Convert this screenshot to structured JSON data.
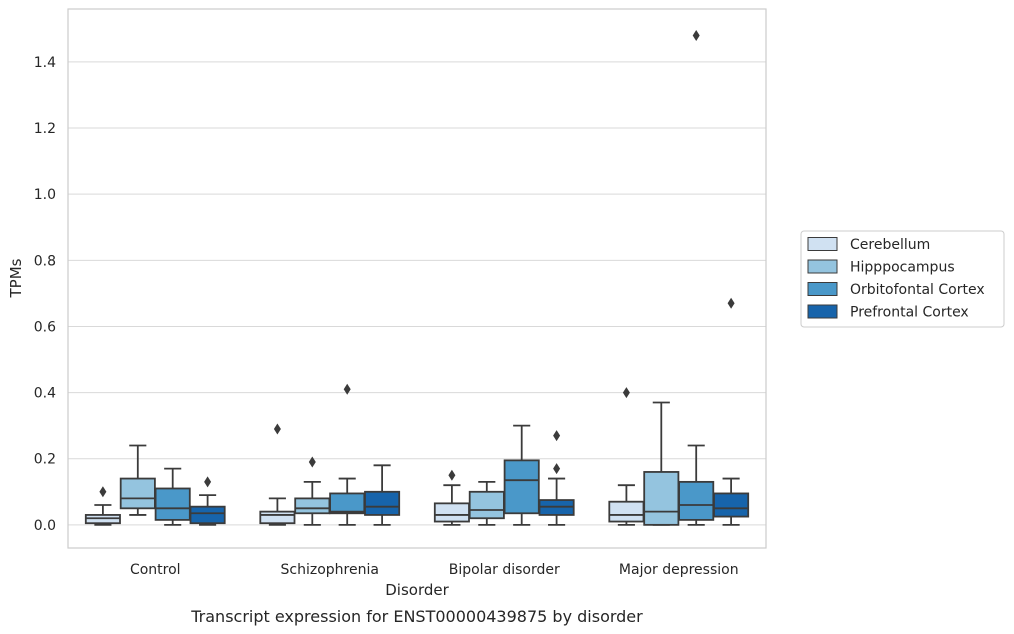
{
  "chart_data": {
    "type": "box",
    "caption": "Transcript expression for ENST00000439875 by disorder",
    "xlabel": "Disorder",
    "ylabel": "TPMs",
    "ylim": [
      -0.07,
      1.56
    ],
    "yticks": [
      "0.0",
      "0.2",
      "0.4",
      "0.6",
      "0.8",
      "1.0",
      "1.2",
      "1.4"
    ],
    "grid": "y",
    "legend_position": "right",
    "categories": [
      "Control",
      "Schizophrenia",
      "Bipolar disorder",
      "Major depression"
    ],
    "series": [
      {
        "name": "Cerebellum",
        "color": "#d0e1f2",
        "boxes": [
          {
            "whislo": 0.0,
            "q1": 0.005,
            "med": 0.02,
            "q3": 0.03,
            "whishi": 0.06,
            "fliers": [
              0.1
            ]
          },
          {
            "whislo": 0.0,
            "q1": 0.005,
            "med": 0.03,
            "q3": 0.04,
            "whishi": 0.08,
            "fliers": [
              0.29
            ]
          },
          {
            "whislo": 0.0,
            "q1": 0.01,
            "med": 0.03,
            "q3": 0.065,
            "whishi": 0.12,
            "fliers": [
              0.15
            ]
          },
          {
            "whislo": 0.0,
            "q1": 0.01,
            "med": 0.03,
            "q3": 0.07,
            "whishi": 0.12,
            "fliers": [
              0.4
            ]
          }
        ]
      },
      {
        "name": "Hipppocampus",
        "color": "#94c4df",
        "boxes": [
          {
            "whislo": 0.03,
            "q1": 0.05,
            "med": 0.08,
            "q3": 0.14,
            "whishi": 0.24,
            "fliers": []
          },
          {
            "whislo": 0.0,
            "q1": 0.035,
            "med": 0.05,
            "q3": 0.08,
            "whishi": 0.13,
            "fliers": [
              0.19
            ]
          },
          {
            "whislo": 0.0,
            "q1": 0.02,
            "med": 0.045,
            "q3": 0.1,
            "whishi": 0.13,
            "fliers": []
          },
          {
            "whislo": 0.0,
            "q1": 0.0,
            "med": 0.04,
            "q3": 0.16,
            "whishi": 0.37,
            "fliers": []
          }
        ]
      },
      {
        "name": "Orbitofontal Cortex",
        "color": "#4a98c9",
        "boxes": [
          {
            "whislo": 0.0,
            "q1": 0.015,
            "med": 0.05,
            "q3": 0.11,
            "whishi": 0.17,
            "fliers": []
          },
          {
            "whislo": 0.0,
            "q1": 0.035,
            "med": 0.04,
            "q3": 0.095,
            "whishi": 0.14,
            "fliers": [
              0.41
            ]
          },
          {
            "whislo": 0.0,
            "q1": 0.035,
            "med": 0.135,
            "q3": 0.195,
            "whishi": 0.3,
            "fliers": []
          },
          {
            "whislo": 0.0,
            "q1": 0.015,
            "med": 0.06,
            "q3": 0.13,
            "whishi": 0.24,
            "fliers": [
              1.48
            ]
          }
        ]
      },
      {
        "name": "Prefrontal Cortex",
        "color": "#1764ab",
        "boxes": [
          {
            "whislo": 0.0,
            "q1": 0.005,
            "med": 0.035,
            "q3": 0.055,
            "whishi": 0.09,
            "fliers": [
              0.13
            ]
          },
          {
            "whislo": 0.0,
            "q1": 0.03,
            "med": 0.055,
            "q3": 0.1,
            "whishi": 0.18,
            "fliers": []
          },
          {
            "whislo": 0.0,
            "q1": 0.03,
            "med": 0.055,
            "q3": 0.075,
            "whishi": 0.14,
            "fliers": [
              0.17,
              0.27
            ]
          },
          {
            "whislo": 0.0,
            "q1": 0.025,
            "med": 0.05,
            "q3": 0.095,
            "whishi": 0.14,
            "fliers": [
              0.67
            ]
          }
        ]
      }
    ]
  }
}
